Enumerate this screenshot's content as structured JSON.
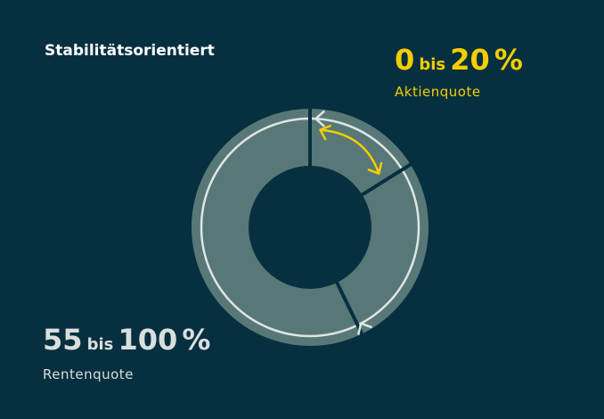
{
  "title": "Stabilitätsorientiert",
  "equity": {
    "from": "0",
    "connector": "bis",
    "to": "20",
    "unit": "%",
    "label": "Aktienquote"
  },
  "bonds": {
    "from": "55",
    "connector": "bis",
    "to": "100",
    "unit": "%",
    "label": "Rentenquote"
  }
}
